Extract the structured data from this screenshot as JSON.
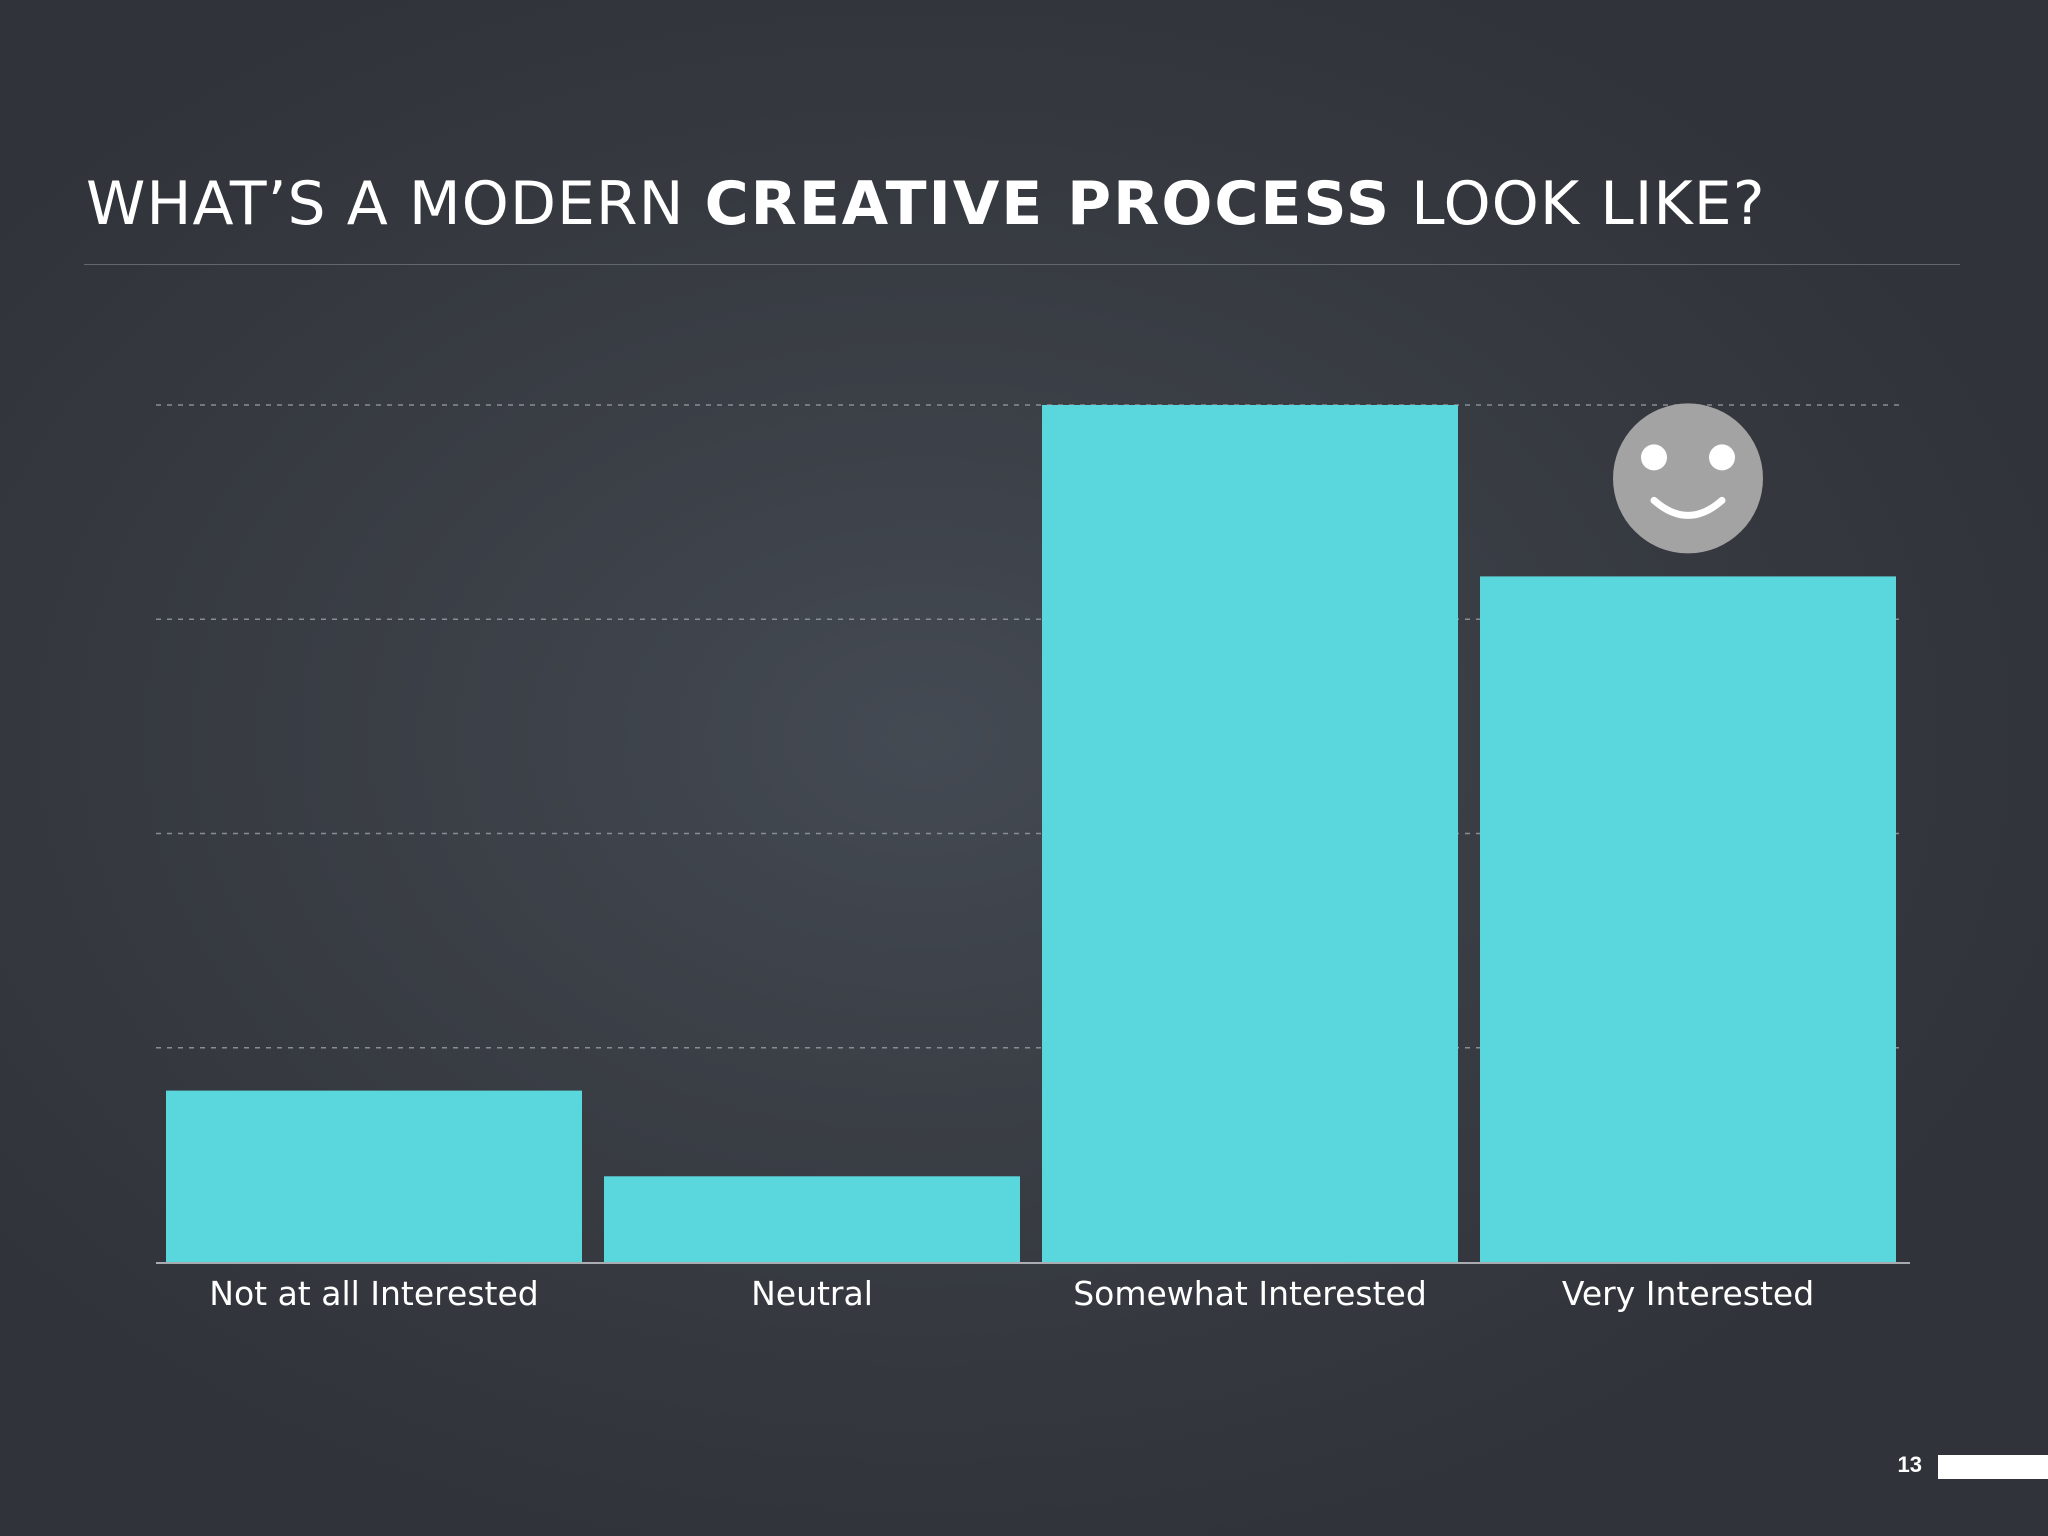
{
  "slide": {
    "title_prefix": "WHAT’S A MODERN ",
    "title_emphasis": "CREATIVE PROCESS",
    "title_suffix": " LOOK LIKE?",
    "page_number": "13"
  },
  "colors": {
    "bar": "#5ad7dc",
    "grid": "#8a8e94",
    "axis": "#cfd2d6",
    "face": "#a3a3a3"
  },
  "chart_data": {
    "type": "bar",
    "categories": [
      "Not at all Interested",
      "Neutral",
      "Somewhat Interested",
      "Very Interested"
    ],
    "values": [
      8,
      4,
      40,
      32
    ],
    "ylim": [
      0,
      40
    ],
    "grid_lines": [
      10,
      20,
      30,
      40
    ],
    "grid": true,
    "annotation": {
      "icon": "smiley-face-icon",
      "category": "Very Interested"
    }
  }
}
